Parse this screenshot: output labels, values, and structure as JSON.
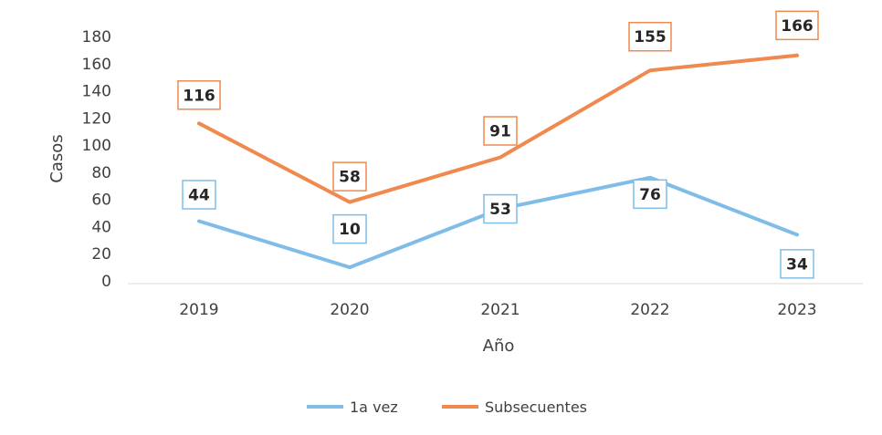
{
  "chart_data": {
    "type": "line",
    "title": "",
    "xlabel": "Año",
    "ylabel": "Casos",
    "categories": [
      "2019",
      "2020",
      "2021",
      "2022",
      "2023"
    ],
    "ylim": [
      0,
      180
    ],
    "yticks": [
      0,
      20,
      40,
      60,
      80,
      100,
      120,
      140,
      160,
      180
    ],
    "grid": false,
    "legend_position": "bottom",
    "series": [
      {
        "name": "1a vez",
        "color": "#7fbde8",
        "values": [
          44,
          10,
          53,
          76,
          34
        ]
      },
      {
        "name": "Subsecuentes",
        "color": "#f0894d",
        "values": [
          116,
          58,
          91,
          155,
          166
        ]
      }
    ]
  }
}
